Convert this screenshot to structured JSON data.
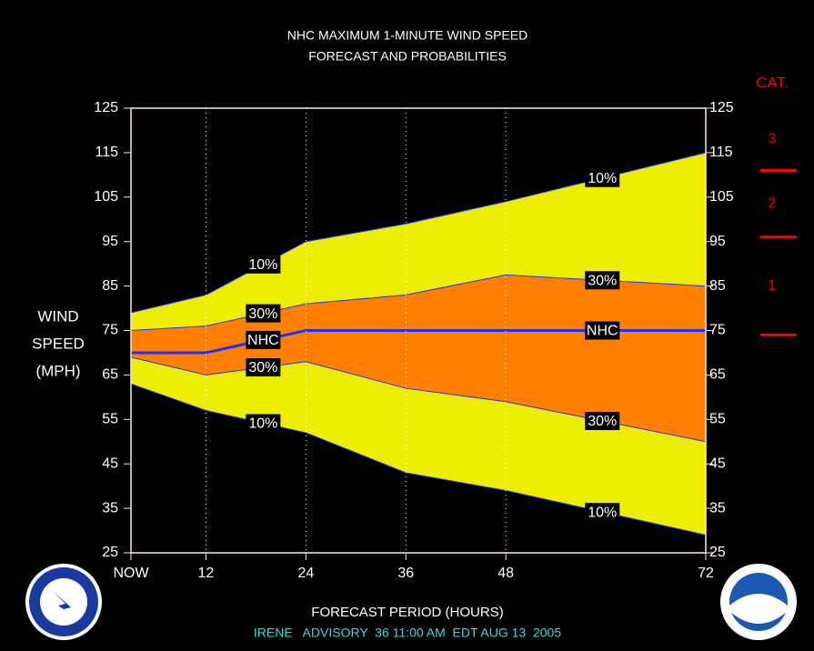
{
  "chart_data": {
    "type": "band",
    "title": "NHC MAXIMUM 1-MINUTE WIND SPEED",
    "subtitle": "FORECAST AND PROBABILITIES",
    "y_label": [
      "WIND",
      "SPEED",
      "(MPH)"
    ],
    "x_label": "FORECAST PERIOD (HOURS)",
    "footer": "IRENE   ADVISORY  36 11:00 AM  EDT AUG 13  2005",
    "x": [
      3,
      12,
      24,
      36,
      48,
      72
    ],
    "xlim": [
      3,
      72
    ],
    "xticks": [
      {
        "value": 3,
        "label": "NOW"
      },
      12,
      24,
      36,
      48,
      72
    ],
    "ylim": [
      25,
      125
    ],
    "yticks": [
      25,
      35,
      45,
      55,
      65,
      75,
      85,
      95,
      105,
      115,
      125
    ],
    "series": [
      {
        "name": "10%",
        "color": "#eeee00",
        "values": [
          79,
          83,
          95,
          99,
          104,
          115
        ]
      },
      {
        "name": "30%",
        "color": "#ff8000",
        "values": [
          75,
          76,
          81,
          83,
          87.5,
          85
        ]
      },
      {
        "name": "NHC",
        "color": "#2030ff",
        "values": [
          70,
          70,
          75,
          75,
          75,
          75
        ]
      },
      {
        "name": "30%",
        "color": "#ff8000",
        "values": [
          69,
          65,
          68,
          62,
          59,
          50
        ]
      },
      {
        "name": "10%",
        "color": "#eeee00",
        "values": [
          63,
          57,
          52,
          43,
          39,
          29
        ]
      }
    ],
    "category_title": "CAT.",
    "category_labels": [
      "1",
      "2",
      "3"
    ],
    "category_thresholds": [
      74,
      96,
      111
    ],
    "category_color": "#ff0000"
  }
}
